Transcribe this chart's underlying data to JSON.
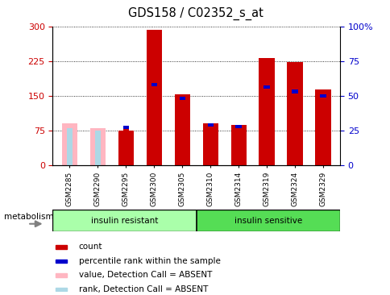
{
  "title": "GDS158 / C02352_s_at",
  "samples": [
    "GSM2285",
    "GSM2290",
    "GSM2295",
    "GSM2300",
    "GSM2305",
    "GSM2310",
    "GSM2314",
    "GSM2319",
    "GSM2324",
    "GSM2329"
  ],
  "count_values": [
    90,
    80,
    75,
    293,
    154,
    90,
    88,
    232,
    224,
    163
  ],
  "rank_values": [
    27,
    25,
    26,
    57,
    47,
    28,
    27,
    55,
    52,
    49
  ],
  "absent": [
    true,
    true,
    false,
    false,
    false,
    false,
    false,
    false,
    false,
    false
  ],
  "ylim_left": [
    0,
    300
  ],
  "ylim_right": [
    0,
    100
  ],
  "yticks_left": [
    0,
    75,
    150,
    225,
    300
  ],
  "yticks_right": [
    0,
    25,
    50,
    75,
    100
  ],
  "group_ir_label": "insulin resistant",
  "group_is_label": "insulin sensitive",
  "group_ir_color": "#aaffaa",
  "group_is_color": "#55dd55",
  "group_split": 5,
  "metabolism_label": "metabolism",
  "bar_width": 0.55,
  "red_color": "#CC0000",
  "pink_color": "#FFB6C1",
  "blue_color": "#0000CC",
  "light_blue_color": "#ADD8E6",
  "tick_label_color_left": "#CC0000",
  "tick_label_color_right": "#0000CC",
  "legend_items": [
    {
      "label": "count",
      "color": "#CC0000"
    },
    {
      "label": "percentile rank within the sample",
      "color": "#0000CC"
    },
    {
      "label": "value, Detection Call = ABSENT",
      "color": "#FFB6C1"
    },
    {
      "label": "rank, Detection Call = ABSENT",
      "color": "#ADD8E6"
    }
  ]
}
